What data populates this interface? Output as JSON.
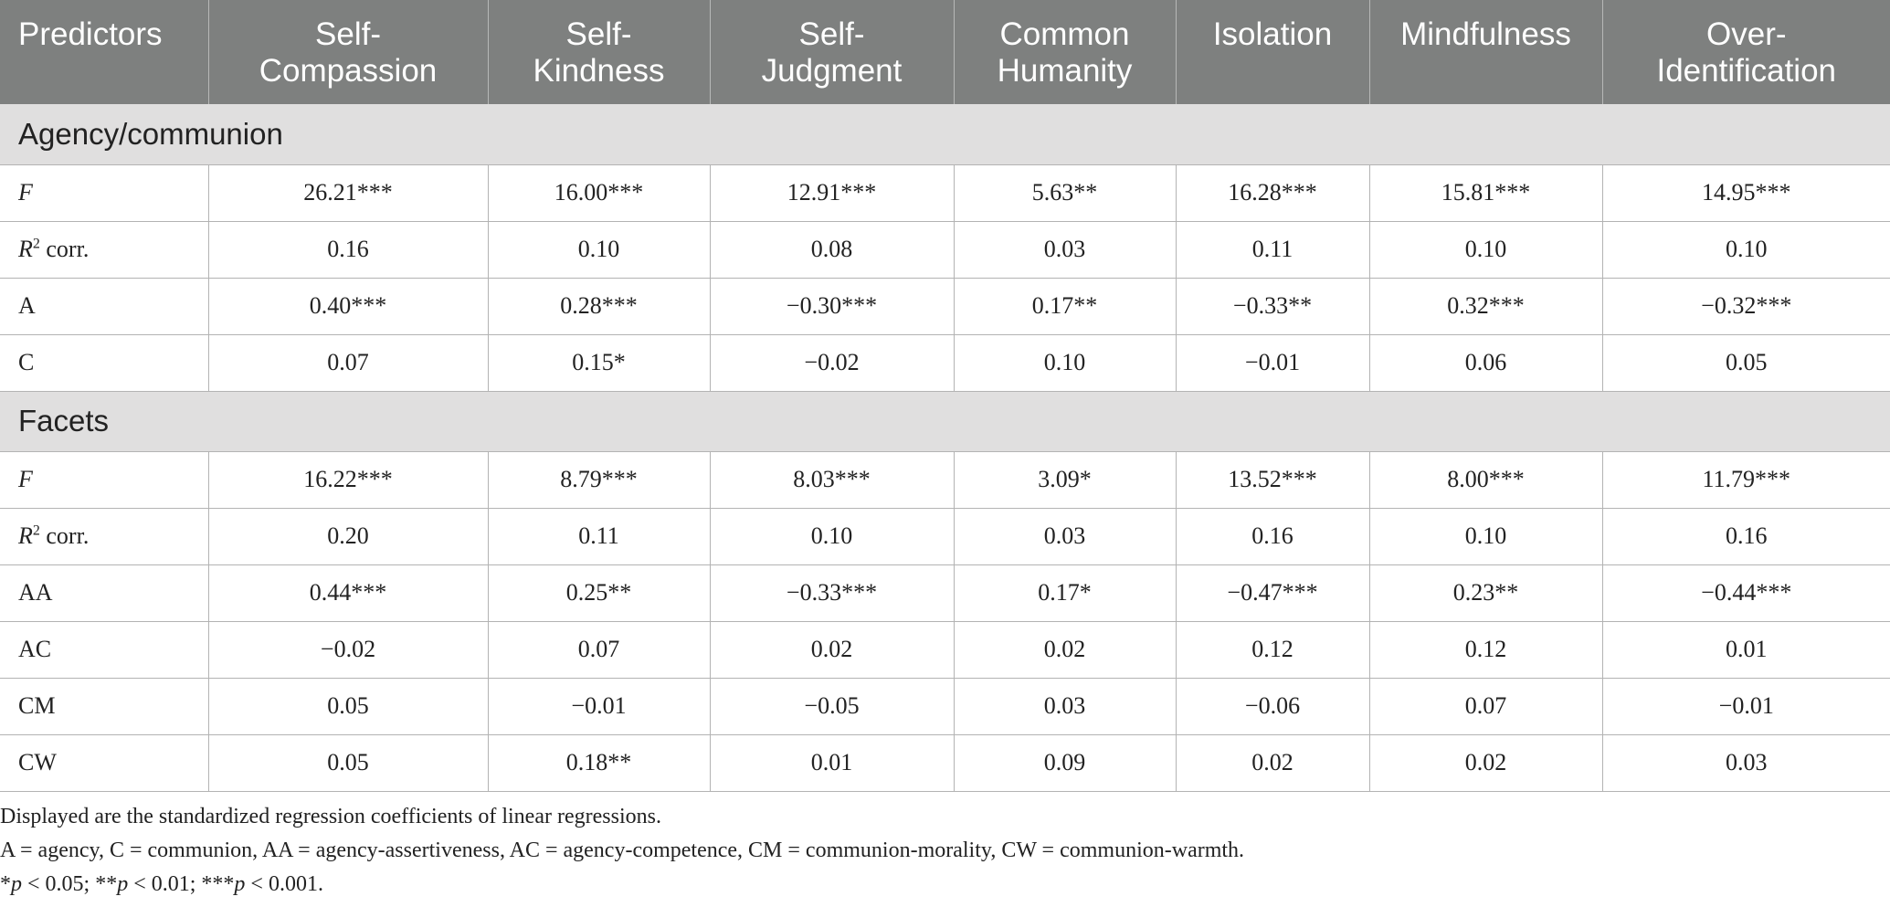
{
  "table": {
    "headers": [
      [
        "Predictors"
      ],
      [
        "Self-",
        "Compassion"
      ],
      [
        "Self-",
        "Kindness"
      ],
      [
        "Self-",
        "Judgment"
      ],
      [
        "Common",
        "Humanity"
      ],
      [
        "Isolation"
      ],
      [
        "Mindfulness"
      ],
      [
        "Over-",
        "Identification"
      ]
    ],
    "section1": {
      "title": "Agency/communion",
      "rows": [
        {
          "label": "F",
          "values": [
            "26.21***",
            "16.00***",
            "12.91***",
            "5.63**",
            "16.28***",
            "15.81***",
            "14.95***"
          ]
        },
        {
          "label": "R",
          "sup": "2",
          "label_suffix": " corr.",
          "values": [
            "0.16",
            "0.10",
            "0.08",
            "0.03",
            "0.11",
            "0.10",
            "0.10"
          ]
        },
        {
          "label": "A",
          "values": [
            "0.40***",
            "0.28***",
            "−0.30***",
            "0.17**",
            "−0.33**",
            "0.32***",
            "−0.32***"
          ]
        },
        {
          "label": "C",
          "values": [
            "0.07",
            "0.15*",
            "−0.02",
            "0.10",
            "−0.01",
            "0.06",
            "0.05"
          ]
        }
      ]
    },
    "section2": {
      "title": "Facets",
      "rows": [
        {
          "label": "F",
          "values": [
            "16.22***",
            "8.79***",
            "8.03***",
            "3.09*",
            "13.52***",
            "8.00***",
            "11.79***"
          ]
        },
        {
          "label": "R",
          "sup": "2",
          "label_suffix": " corr.",
          "values": [
            "0.20",
            "0.11",
            "0.10",
            "0.03",
            "0.16",
            "0.10",
            "0.16"
          ]
        },
        {
          "label": "AA",
          "values": [
            "0.44***",
            "0.25**",
            "−0.33***",
            "0.17*",
            "−0.47***",
            "0.23**",
            "−0.44***"
          ]
        },
        {
          "label": "AC",
          "values": [
            "−0.02",
            "0.07",
            "0.02",
            "0.02",
            "0.12",
            "0.12",
            "0.01"
          ]
        },
        {
          "label": "CM",
          "values": [
            "0.05",
            "−0.01",
            "−0.05",
            "0.03",
            "−0.06",
            "0.07",
            "−0.01"
          ]
        },
        {
          "label": "CW",
          "values": [
            "0.05",
            "0.18**",
            "0.01",
            "0.09",
            "0.02",
            "0.02",
            "0.03"
          ]
        }
      ]
    }
  },
  "notes": {
    "line1": "Displayed are the standardized regression coefficients of linear regressions.",
    "line2": "A = agency, C = communion, AA = agency-assertiveness, AC = agency-competence, CM = communion-morality, CW = communion-warmth.",
    "line3_parts": [
      "*",
      "p",
      " < 0.05; **",
      "p",
      " < 0.01; ***",
      "p",
      " < 0.001."
    ]
  }
}
